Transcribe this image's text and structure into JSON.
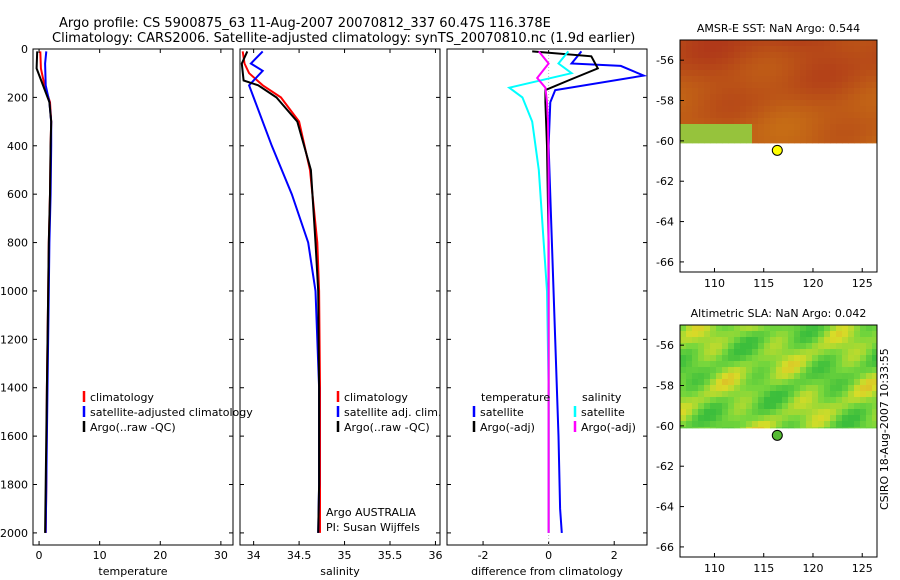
{
  "title": {
    "line1": "Argo profile: CS 5900875_63 11-Aug-2007 20070812_337 60.47S 116.378E",
    "line2": "Climatology: CARS2006. Satellite-adjusted climatology: synTS_20070810.nc (1.9d earlier)"
  },
  "watermark": "CSIRO 18-Aug-2007 10:33:55",
  "colors": {
    "climatology": "#ff0000",
    "satellite": "#0000ff",
    "argo": "#000000",
    "sal_satellite": "#00ffff",
    "sal_argo": "#ff00ff",
    "marker": "#ffff00"
  },
  "chart_data": [
    {
      "id": "temperature",
      "type": "line",
      "xlabel": "temperature",
      "ylabel": "",
      "xlim": [
        -1,
        32
      ],
      "ylim": [
        2050,
        0
      ],
      "xticks": [
        0,
        10,
        20,
        30
      ],
      "yticks": [
        0,
        200,
        400,
        600,
        800,
        1000,
        1200,
        1400,
        1600,
        1800,
        2000
      ],
      "legend": [
        "climatology",
        "satellite-adjusted climatology",
        "Argo(..raw -QC)"
      ],
      "series": [
        {
          "name": "climatology",
          "color": "#ff0000",
          "x": [
            0.2,
            0.3,
            0.9,
            1.8,
            2.0,
            1.9,
            1.8,
            1.6,
            1.5,
            1.3,
            1.2,
            1.1
          ],
          "y": [
            10,
            80,
            150,
            220,
            300,
            400,
            600,
            800,
            1000,
            1400,
            1800,
            2000
          ]
        },
        {
          "name": "satellite-adjusted climatology",
          "color": "#0000ff",
          "x": [
            1.2,
            1.0,
            1.1,
            1.7,
            2.0,
            2.0,
            1.9,
            1.7,
            1.6,
            1.4,
            1.2,
            1.1
          ],
          "y": [
            10,
            60,
            150,
            220,
            300,
            400,
            600,
            800,
            1000,
            1400,
            1800,
            2000
          ]
        },
        {
          "name": "Argo(..raw -QC)",
          "color": "#000000",
          "x": [
            -0.3,
            -0.4,
            0.5,
            1.7,
            2.0,
            1.9,
            1.8,
            1.6,
            1.5,
            1.3,
            1.1,
            1.0
          ],
          "y": [
            10,
            80,
            140,
            220,
            300,
            400,
            600,
            800,
            1000,
            1400,
            1800,
            2000
          ]
        }
      ]
    },
    {
      "id": "salinity",
      "type": "line",
      "xlabel": "salinity",
      "xlim": [
        33.85,
        36.05
      ],
      "ylim": [
        2050,
        0
      ],
      "xticks": [
        34,
        34.5,
        35,
        35.5,
        36
      ],
      "legend": [
        "climatology",
        "satellite adj. clim.",
        "Argo(..raw -QC)"
      ],
      "annotations": [
        "Argo AUSTRALIA",
        "PI: Susan Wijffels"
      ],
      "series": [
        {
          "name": "climatology",
          "color": "#ff0000",
          "x": [
            33.88,
            33.9,
            33.95,
            34.1,
            34.3,
            34.5,
            34.62,
            34.7,
            34.72,
            34.73,
            34.73,
            34.73
          ],
          "y": [
            10,
            60,
            100,
            150,
            200,
            300,
            500,
            800,
            1000,
            1400,
            1800,
            2000
          ]
        },
        {
          "name": "satellite adj. clim.",
          "color": "#0000ff",
          "x": [
            34.1,
            33.97,
            34.1,
            33.95,
            34.0,
            34.2,
            34.42,
            34.6,
            34.68,
            34.72,
            34.72,
            34.71
          ],
          "y": [
            10,
            60,
            90,
            150,
            200,
            400,
            600,
            800,
            1000,
            1400,
            1800,
            2000
          ]
        },
        {
          "name": "Argo(..raw -QC)",
          "color": "#000000",
          "x": [
            33.93,
            33.87,
            33.89,
            34.05,
            34.25,
            34.48,
            34.63,
            34.68,
            34.71,
            34.72,
            34.72,
            34.71
          ],
          "y": [
            10,
            60,
            130,
            150,
            200,
            300,
            500,
            800,
            1000,
            1400,
            1800,
            2000
          ]
        }
      ]
    },
    {
      "id": "difference",
      "type": "line",
      "xlabel": "difference from climatology",
      "xlim": [
        -3.1,
        3.0
      ],
      "ylim": [
        2050,
        0
      ],
      "xticks": [
        -2,
        0,
        2
      ],
      "legend_temperature": {
        "header": "temperature",
        "items": [
          "satellite",
          "Argo(-adj)"
        ]
      },
      "legend_salinity": {
        "header": "salinity",
        "items": [
          "satellite",
          "Argo(-adj)"
        ]
      },
      "series": [
        {
          "name": "temperature satellite",
          "color": "#0000ff",
          "x": [
            1.0,
            0.7,
            2.2,
            2.9,
            0.2,
            0.05,
            0.0,
            0.1,
            0.2,
            0.3,
            0.35,
            0.4
          ],
          "y": [
            10,
            60,
            70,
            110,
            170,
            220,
            400,
            800,
            1200,
            1600,
            1900,
            2000
          ]
        },
        {
          "name": "temperature Argo(-adj)",
          "color": "#000000",
          "x": [
            -0.5,
            1.3,
            1.5,
            0.6,
            -0.1,
            -0.1,
            -0.05,
            0.0,
            0.0,
            0.0,
            0.0,
            0.0
          ],
          "y": [
            10,
            30,
            80,
            130,
            170,
            220,
            400,
            800,
            1200,
            1600,
            1900,
            2000
          ]
        },
        {
          "name": "salinity satellite",
          "color": "#00ffff",
          "x": [
            0.6,
            0.3,
            0.7,
            -1.2,
            -0.8,
            -0.5,
            -0.3,
            -0.15,
            -0.05,
            0.0,
            0.0,
            0.0
          ],
          "y": [
            10,
            60,
            100,
            160,
            200,
            300,
            500,
            800,
            1000,
            1400,
            1800,
            2000
          ]
        },
        {
          "name": "salinity Argo(-adj)",
          "color": "#ff00ff",
          "x": [
            -0.3,
            0.0,
            -0.35,
            -0.1,
            -0.05,
            -0.02,
            0.0,
            0.0,
            0.0,
            0.0,
            0.0,
            0.0
          ],
          "y": [
            10,
            60,
            120,
            160,
            220,
            300,
            500,
            800,
            1000,
            1400,
            1800,
            2000
          ]
        }
      ]
    },
    {
      "id": "sst-map",
      "type": "heatmap",
      "title": "AMSR-E SST: NaN Argo: 0.544",
      "xlim": [
        106.5,
        126.5
      ],
      "ylim": [
        -66.5,
        -55
      ],
      "xticks": [
        110,
        115,
        120,
        125
      ],
      "yticks": [
        -56,
        -58,
        -60,
        -62,
        -64,
        -66
      ],
      "coverage_to_lat": -60.1,
      "argo_position": {
        "lon": 116.378,
        "lat": -60.47
      }
    },
    {
      "id": "sla-map",
      "type": "heatmap",
      "title": "Altimetric SLA: NaN Argo: 0.042",
      "xlim": [
        106.5,
        126.5
      ],
      "ylim": [
        -66.5,
        -55
      ],
      "xticks": [
        110,
        115,
        120,
        125
      ],
      "yticks": [
        -56,
        -58,
        -60,
        -62,
        -64,
        -66
      ],
      "coverage_to_lat": -60.1,
      "argo_position": {
        "lon": 116.378,
        "lat": -60.47
      }
    }
  ]
}
